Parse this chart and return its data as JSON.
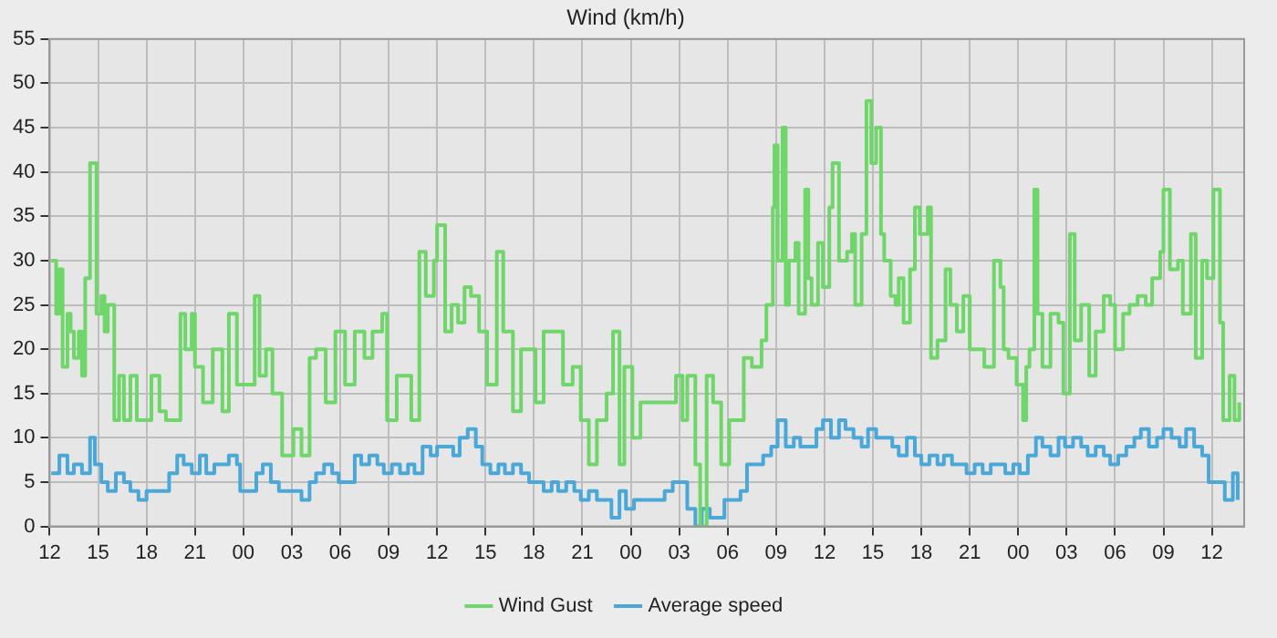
{
  "chart_data": {
    "type": "step",
    "title": "Wind (km/h)",
    "xlim": [
      12,
      86
    ],
    "xticks": [
      12,
      15,
      18,
      21,
      {
        "value": 24,
        "label": "00"
      },
      {
        "value": 27,
        "label": "03"
      },
      {
        "value": 30,
        "label": "06"
      },
      {
        "value": 33,
        "label": "09"
      },
      {
        "value": 36,
        "label": "12"
      },
      {
        "value": 39,
        "label": "15"
      },
      {
        "value": 42,
        "label": "18"
      },
      {
        "value": 45,
        "label": "21"
      },
      {
        "value": 48,
        "label": "00"
      },
      {
        "value": 51,
        "label": "03"
      },
      {
        "value": 54,
        "label": "06"
      },
      {
        "value": 57,
        "label": "09"
      },
      {
        "value": 60,
        "label": "12"
      },
      {
        "value": 63,
        "label": "15"
      },
      {
        "value": 66,
        "label": "18"
      },
      {
        "value": 69,
        "label": "21"
      },
      {
        "value": 72,
        "label": "00"
      },
      {
        "value": 75,
        "label": "03"
      },
      {
        "value": 78,
        "label": "06"
      },
      {
        "value": 81,
        "label": "09"
      },
      {
        "value": 84,
        "label": "12"
      }
    ],
    "ylim": [
      0,
      55
    ],
    "yticks": [
      0,
      5,
      10,
      15,
      20,
      25,
      30,
      35,
      40,
      45,
      50,
      55
    ],
    "grid": true,
    "legend": "bottom",
    "line_style": "solid",
    "marker": "none",
    "series": [
      {
        "name": "Wind Gust",
        "color": "#6fd66a",
        "x": [
          12.1,
          12.4,
          12.6,
          12.8,
          13.1,
          13.3,
          13.5,
          13.8,
          14.0,
          14.2,
          14.5,
          14.7,
          14.9,
          15.2,
          15.4,
          15.6,
          16.0,
          16.3,
          16.6,
          17.0,
          17.4,
          17.9,
          18.3,
          18.8,
          19.2,
          19.5,
          20.1,
          20.4,
          20.8,
          21.0,
          21.5,
          22.1,
          22.7,
          23.1,
          23.6,
          24.1,
          24.7,
          25.0,
          25.4,
          25.8,
          26.4,
          27.1,
          27.6,
          28.1,
          28.5,
          29.1,
          29.7,
          30.3,
          30.9,
          31.5,
          32.0,
          32.6,
          32.9,
          33.5,
          33.9,
          34.4,
          34.9,
          35.3,
          35.8,
          36.0,
          36.5,
          36.9,
          37.3,
          37.7,
          38.1,
          38.6,
          39.1,
          39.7,
          40.1,
          40.7,
          41.2,
          41.7,
          42.1,
          42.6,
          43.2,
          43.8,
          44.4,
          44.9,
          45.4,
          45.9,
          46.5,
          46.9,
          47.3,
          47.6,
          48.1,
          48.6,
          49.2,
          49.9,
          50.3,
          50.8,
          51.2,
          51.5,
          52.0,
          52.3,
          52.7,
          53.1,
          53.6,
          54.1,
          54.6,
          55.0,
          55.5,
          56.1,
          56.4,
          56.8,
          56.9,
          57.1,
          57.4,
          57.6,
          57.8,
          58.2,
          58.4,
          58.8,
          59.0,
          59.2,
          59.6,
          59.9,
          60.3,
          60.5,
          60.9,
          61.4,
          61.7,
          61.9,
          62.3,
          62.6,
          62.9,
          63.2,
          63.5,
          63.7,
          64.1,
          64.4,
          64.6,
          64.9,
          65.3,
          65.6,
          65.9,
          66.4,
          66.6,
          67.0,
          67.5,
          67.8,
          68.2,
          68.6,
          69.0,
          69.4,
          69.9,
          70.5,
          70.9,
          71.1,
          71.4,
          71.9,
          72.3,
          72.5,
          72.7,
          73.0,
          73.2,
          73.5,
          74.0,
          74.5,
          74.8,
          75.2,
          75.5,
          75.9,
          76.4,
          76.8,
          77.3,
          77.7,
          78.0,
          78.5,
          78.9,
          79.4,
          79.9,
          80.3,
          80.8,
          81.0,
          81.4,
          81.9,
          82.2,
          82.7,
          83.0,
          83.4,
          83.7,
          84.1,
          84.5,
          84.7,
          85.1,
          85.4,
          85.7
        ],
        "values": [
          30,
          24,
          29,
          18,
          24,
          22,
          19,
          22,
          17,
          28,
          41,
          41,
          24,
          26,
          22,
          25,
          12,
          17,
          12,
          17,
          12,
          12,
          17,
          13,
          12,
          12,
          24,
          20,
          24,
          18,
          14,
          20,
          13,
          24,
          16,
          16,
          26,
          17,
          20,
          15,
          8,
          11,
          8,
          19,
          20,
          14,
          22,
          16,
          22,
          19,
          22,
          24,
          12,
          17,
          17,
          12,
          31,
          26,
          30,
          34,
          22,
          25,
          23,
          27,
          26,
          22,
          16,
          31,
          22,
          13,
          20,
          20,
          14,
          22,
          22,
          16,
          18,
          12,
          7,
          12,
          15,
          22,
          7,
          18,
          10,
          14,
          14,
          14,
          14,
          17,
          12,
          17,
          7,
          0,
          17,
          14,
          7,
          12,
          12,
          19,
          18,
          21,
          25,
          36,
          43,
          30,
          45,
          25,
          30,
          32,
          24,
          38,
          28,
          25,
          32,
          27,
          36,
          41,
          30,
          31,
          33,
          25,
          33,
          48,
          41,
          45,
          33,
          30,
          26,
          25,
          28,
          23,
          29,
          36,
          33,
          36,
          19,
          21,
          29,
          25,
          22,
          26,
          20,
          20,
          18,
          30,
          27,
          20,
          19,
          16,
          12,
          18,
          20,
          38,
          24,
          18,
          24,
          23,
          15,
          33,
          21,
          25,
          17,
          22,
          26,
          25,
          20,
          24,
          25,
          26,
          25,
          28,
          31,
          38,
          29,
          30,
          24,
          33,
          19,
          30,
          28,
          38,
          23,
          12,
          17,
          12,
          14
        ]
      },
      {
        "name": "Average speed",
        "color": "#4aa8d8",
        "x": [
          12.1,
          12.6,
          13.1,
          13.5,
          14.0,
          14.5,
          14.8,
          15.2,
          15.6,
          16.1,
          16.6,
          17.0,
          17.5,
          18.0,
          18.4,
          18.9,
          19.4,
          19.9,
          20.3,
          20.8,
          21.3,
          21.7,
          22.2,
          22.7,
          23.1,
          23.6,
          23.8,
          24.3,
          24.8,
          25.2,
          25.7,
          26.2,
          26.6,
          27.1,
          27.6,
          28.1,
          28.5,
          29.0,
          29.5,
          29.9,
          30.4,
          30.9,
          31.3,
          31.8,
          32.3,
          32.7,
          33.2,
          33.7,
          34.2,
          34.6,
          35.1,
          35.6,
          36.0,
          36.5,
          37.0,
          37.4,
          37.9,
          38.4,
          38.8,
          39.3,
          39.8,
          40.2,
          40.7,
          41.2,
          41.7,
          42.1,
          42.6,
          43.1,
          43.5,
          44.0,
          44.5,
          44.9,
          45.4,
          45.9,
          46.3,
          46.8,
          47.3,
          47.7,
          48.2,
          48.7,
          49.2,
          49.6,
          50.1,
          50.6,
          51.0,
          51.5,
          52.0,
          52.4,
          52.9,
          53.4,
          53.8,
          54.3,
          54.8,
          55.2,
          55.7,
          56.2,
          56.7,
          57.1,
          57.6,
          58.1,
          58.5,
          59.0,
          59.5,
          59.9,
          60.4,
          60.9,
          61.3,
          61.8,
          62.3,
          62.7,
          63.2,
          63.7,
          64.2,
          64.6,
          65.1,
          65.6,
          66.0,
          66.5,
          67.0,
          67.4,
          67.9,
          68.4,
          68.8,
          69.3,
          69.8,
          70.3,
          70.7,
          71.2,
          71.7,
          72.1,
          72.6,
          73.1,
          73.5,
          74.0,
          74.5,
          74.9,
          75.4,
          75.9,
          76.3,
          76.8,
          77.3,
          77.7,
          78.2,
          78.7,
          79.2,
          79.6,
          80.1,
          80.6,
          81.0,
          81.5,
          82.0,
          82.4,
          82.9,
          83.4,
          83.8,
          84.3,
          84.8,
          85.3,
          85.6
        ],
        "values": [
          6,
          8,
          6,
          7,
          6,
          10,
          7,
          5,
          4,
          6,
          5,
          4,
          3,
          4,
          4,
          4,
          6,
          8,
          7,
          6,
          8,
          6,
          7,
          7,
          8,
          7,
          4,
          4,
          6,
          7,
          5,
          4,
          4,
          4,
          3,
          5,
          6,
          7,
          6,
          5,
          5,
          8,
          7,
          8,
          7,
          6,
          7,
          6,
          7,
          6,
          9,
          8,
          9,
          9,
          8,
          10,
          11,
          9,
          7,
          6,
          7,
          6,
          7,
          6,
          5,
          5,
          4,
          5,
          4,
          5,
          4,
          3,
          4,
          3,
          3,
          1,
          4,
          2,
          3,
          3,
          3,
          3,
          4,
          5,
          5,
          2,
          0,
          2,
          1,
          1,
          3,
          3,
          4,
          7,
          7,
          8,
          9,
          12,
          9,
          10,
          9,
          9,
          11,
          12,
          10,
          12,
          11,
          10,
          9,
          11,
          10,
          10,
          9,
          8,
          10,
          8,
          7,
          8,
          7,
          8,
          7,
          7,
          6,
          7,
          6,
          7,
          7,
          6,
          7,
          6,
          8,
          10,
          9,
          8,
          10,
          9,
          10,
          9,
          8,
          9,
          8,
          7,
          8,
          9,
          10,
          11,
          9,
          10,
          11,
          10,
          9,
          11,
          9,
          8,
          5,
          5,
          3,
          6,
          3
        ]
      }
    ]
  }
}
